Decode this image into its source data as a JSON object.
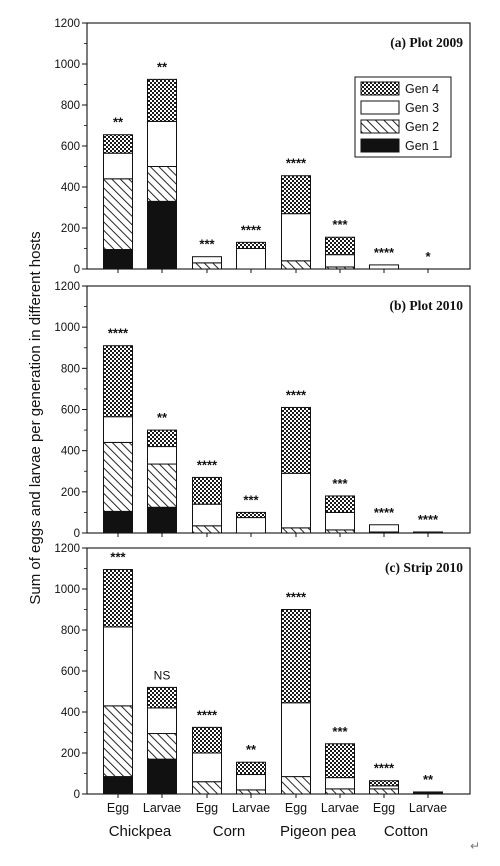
{
  "chart_data": {
    "type": "bar",
    "stacked": true,
    "ylabel": "Sum of eggs and larvae per generation in different hosts",
    "ylim": [
      0,
      1200
    ],
    "yticks": [
      0,
      200,
      400,
      600,
      800,
      1000,
      1200
    ],
    "categories": [
      "Egg",
      "Larvae",
      "Egg",
      "Larvae",
      "Egg",
      "Larvae",
      "Egg",
      "Larvae"
    ],
    "host_groups": [
      "Chickpea",
      "Corn",
      "Pigeon pea",
      "Cotton"
    ],
    "legend": {
      "placement": "top-right of panel (a)",
      "entries": [
        {
          "name": "Gen 4",
          "pattern": "grid"
        },
        {
          "name": "Gen 3",
          "pattern": "white"
        },
        {
          "name": "Gen 2",
          "pattern": "hatch"
        },
        {
          "name": "Gen 1",
          "pattern": "black"
        }
      ]
    },
    "panels": [
      {
        "title": "(a) Plot 2009",
        "series": [
          {
            "name": "Gen 1",
            "values": [
              95,
              330,
              0,
              0,
              0,
              0,
              0,
              0
            ]
          },
          {
            "name": "Gen 2",
            "values": [
              345,
              170,
              30,
              0,
              40,
              10,
              0,
              0
            ]
          },
          {
            "name": "Gen 3",
            "values": [
              125,
              220,
              30,
              100,
              230,
              60,
              20,
              0
            ]
          },
          {
            "name": "Gen 4",
            "values": [
              90,
              205,
              0,
              30,
              185,
              85,
              0,
              0
            ]
          }
        ],
        "significance": [
          "**",
          "**",
          "***",
          "****",
          "****",
          "***",
          "****",
          "*"
        ]
      },
      {
        "title": "(b) Plot 2010",
        "series": [
          {
            "name": "Gen 1",
            "values": [
              105,
              125,
              0,
              0,
              0,
              0,
              0,
              0
            ]
          },
          {
            "name": "Gen 2",
            "values": [
              335,
              210,
              35,
              0,
              25,
              15,
              5,
              0
            ]
          },
          {
            "name": "Gen 3",
            "values": [
              125,
              85,
              105,
              75,
              265,
              85,
              35,
              5
            ]
          },
          {
            "name": "Gen 4",
            "values": [
              345,
              80,
              130,
              25,
              320,
              80,
              0,
              0
            ]
          }
        ],
        "significance": [
          "****",
          "**",
          "****",
          "***",
          "****",
          "***",
          "****",
          "****"
        ]
      },
      {
        "title": "(c) Strip 2010",
        "series": [
          {
            "name": "Gen 1",
            "values": [
              85,
              170,
              0,
              0,
              0,
              0,
              0,
              0
            ]
          },
          {
            "name": "Gen 2",
            "values": [
              345,
              125,
              60,
              20,
              85,
              25,
              25,
              0
            ]
          },
          {
            "name": "Gen 3",
            "values": [
              385,
              125,
              140,
              75,
              360,
              55,
              15,
              5
            ]
          },
          {
            "name": "Gen 4",
            "values": [
              280,
              100,
              125,
              60,
              455,
              165,
              25,
              5
            ]
          }
        ],
        "significance": [
          "***",
          "NS",
          "****",
          "**",
          "****",
          "***",
          "****",
          "**"
        ]
      }
    ]
  },
  "return_mark": "↵"
}
